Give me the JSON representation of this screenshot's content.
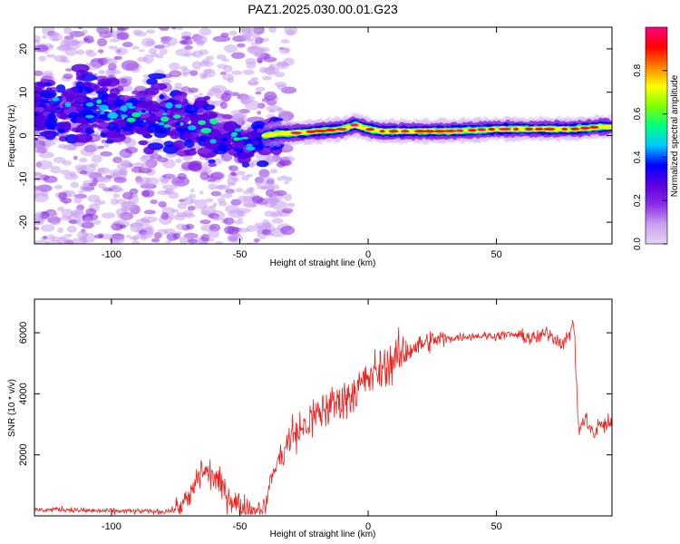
{
  "title": "PAZ1.2025.030.00.01.G23",
  "chart_data": [
    {
      "type": "heatmap",
      "xlabel": "Height of straight line (km)",
      "ylabel": "Frequency (Hz)",
      "xlim": [
        -130,
        95
      ],
      "ylim": [
        -25,
        25
      ],
      "xticks": [
        -100,
        -50,
        0,
        50
      ],
      "yticks": [
        20,
        10,
        0,
        -10,
        -20
      ],
      "colorbar": {
        "label": "Normalized spectral amplitude",
        "range": [
          0,
          1
        ],
        "ticks": [
          "0.0",
          "0.2",
          "0.4",
          "0.6",
          "0.8"
        ],
        "colors": [
          "#e6d2f5",
          "#c8a0f0",
          "#8a2be2",
          "#5b00e0",
          "#0000ff",
          "#00c8ff",
          "#00ff80",
          "#80ff00",
          "#ffff00",
          "#ff8000",
          "#ff0000",
          "#ff0080"
        ]
      },
      "ridge": {
        "x": [
          -130,
          -120,
          -110,
          -100,
          -90,
          -80,
          -70,
          -60,
          -50,
          -45,
          -40,
          -35,
          -30,
          -20,
          -10,
          -5,
          0,
          5,
          10,
          20,
          30,
          40,
          50,
          60,
          70,
          80,
          90,
          95
        ],
        "y": [
          5,
          6,
          7,
          6,
          5,
          4,
          3,
          1,
          -1,
          -2,
          0,
          0.5,
          0.5,
          1,
          1.5,
          2.5,
          1.5,
          1,
          1,
          1,
          1,
          1.2,
          1.5,
          1.5,
          1.5,
          1.5,
          2,
          2
        ]
      }
    },
    {
      "type": "line",
      "xlabel": "Height of straight line (km)",
      "ylabel": "SNR (10 * v/v)",
      "xlim": [
        -130,
        95
      ],
      "ylim": [
        0,
        7100
      ],
      "xticks": [
        -100,
        -50,
        0,
        50
      ],
      "yticks": [
        2000,
        4000,
        6000
      ],
      "color": "#e8221e",
      "series": [
        {
          "x": [
            -130,
            -120,
            -110,
            -100,
            -90,
            -80,
            -75,
            -70,
            -65,
            -60,
            -55,
            -50,
            -45,
            -40,
            -38,
            -35,
            -30,
            -25,
            -20,
            -15,
            -10,
            -5,
            0,
            5,
            10,
            15,
            20,
            25,
            30,
            35,
            40,
            45,
            50,
            55,
            60,
            65,
            70,
            75,
            78,
            80,
            82,
            85,
            88,
            90,
            95
          ],
          "y": [
            180,
            220,
            170,
            160,
            150,
            140,
            200,
            500,
            1500,
            1300,
            700,
            300,
            200,
            300,
            1200,
            1800,
            2600,
            2900,
            3300,
            3600,
            3800,
            4100,
            4500,
            4800,
            5100,
            5400,
            5600,
            5750,
            5800,
            5850,
            5900,
            5900,
            5900,
            5950,
            5900,
            5800,
            6000,
            5700,
            5800,
            6500,
            2800,
            3200,
            2600,
            3000,
            3000
          ]
        }
      ]
    }
  ]
}
